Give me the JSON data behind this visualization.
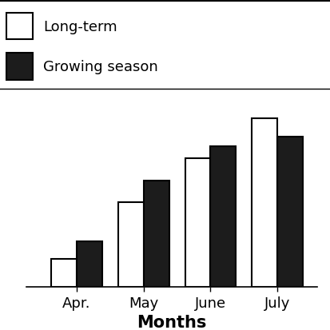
{
  "categories": [
    "Apr.",
    "May",
    "June",
    "July"
  ],
  "long_term": [
    38,
    115,
    175,
    230
  ],
  "growing_season": [
    62,
    145,
    192,
    205
  ],
  "bar_colors_lt": "#ffffff",
  "bar_colors_gs": "#1c1c1c",
  "bar_edgecolor": "#000000",
  "xlabel": "Months",
  "legend_labels": [
    "Long-term",
    "Growing season"
  ],
  "bar_width": 0.38,
  "ylim": [
    0,
    270
  ],
  "background_color": "#ffffff",
  "xlabel_fontsize": 15,
  "tick_fontsize": 13,
  "legend_fontsize": 13,
  "bar_linewidth": 1.5
}
